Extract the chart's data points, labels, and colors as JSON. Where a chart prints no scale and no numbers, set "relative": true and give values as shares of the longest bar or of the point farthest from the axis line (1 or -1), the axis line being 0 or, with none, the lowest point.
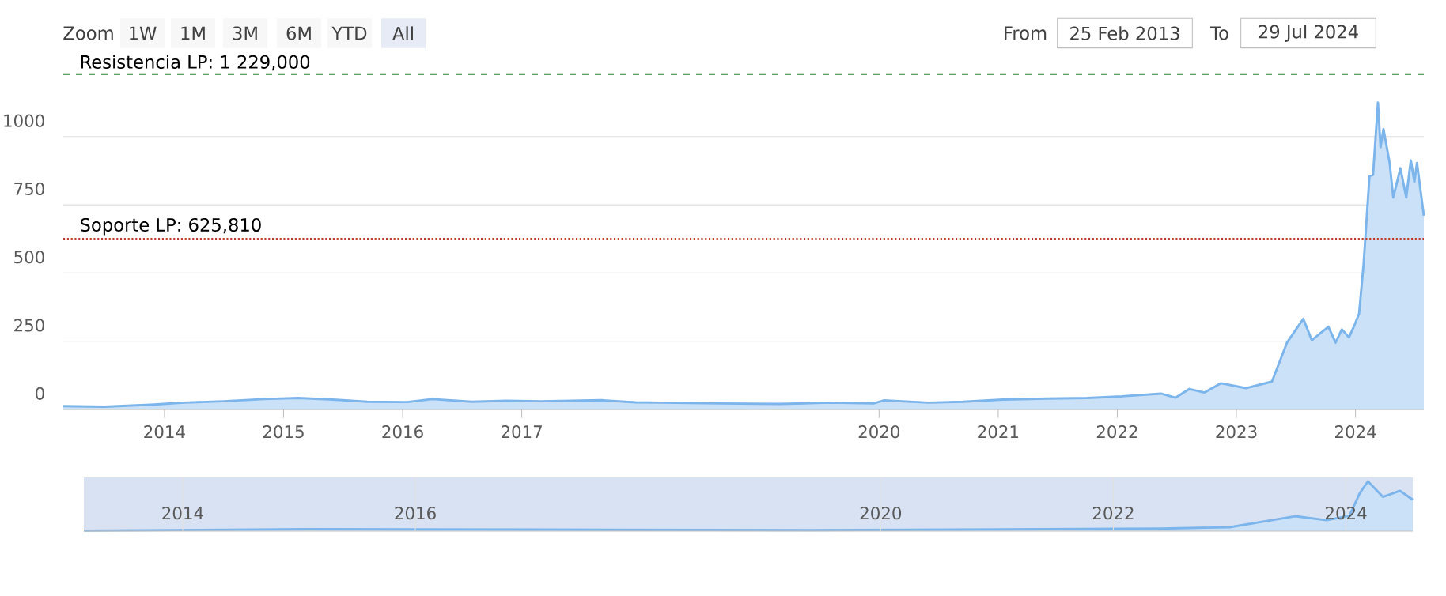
{
  "chart_data": [
    {
      "type": "area",
      "color": "#7cb5ec",
      "annotations": [
        "Zoom",
        "1W",
        "1M",
        "3M",
        "6M",
        "YTD",
        "All",
        "From",
        "25 Feb 2013",
        "To",
        "29 Jul 2024"
      ],
      "x": [
        "2013-02-25",
        "2013-07-01",
        "2013-12-01",
        "2014-03-01",
        "2014-07-01",
        "2014-11-01",
        "2015-02-15",
        "2015-06-01",
        "2015-09-15",
        "2016-01-15",
        "2016-04-01",
        "2016-08-01",
        "2016-11-15",
        "2017-03-01",
        "2017-09-01",
        "2017-12-15",
        "2018-03-01",
        "2018-09-01",
        "2019-03-01",
        "2019-08-01",
        "2019-12-15",
        "2020-01-15",
        "2020-06-01",
        "2020-09-15",
        "2021-01-15",
        "2021-06-01",
        "2021-10-01",
        "2022-01-15",
        "2022-05-15",
        "2022-06-28",
        "2022-08-10",
        "2022-09-25",
        "2022-11-15",
        "2023-01-30",
        "2023-04-20",
        "2023-06-05",
        "2023-07-25",
        "2023-08-20",
        "2023-10-10",
        "2023-11-01",
        "2023-11-20",
        "2023-12-12",
        "2023-12-30",
        "2024-01-12",
        "2024-01-26",
        "2024-02-13",
        "2024-02-24",
        "2024-03-10",
        "2024-03-18",
        "2024-03-27",
        "2024-04-15",
        "2024-04-26",
        "2024-05-18",
        "2024-06-05",
        "2024-06-19",
        "2024-06-30",
        "2024-07-08",
        "2024-07-29"
      ],
      "values": [
        12,
        10,
        18,
        25,
        30,
        38,
        42,
        36,
        28,
        27,
        38,
        28,
        32,
        30,
        34,
        26,
        25,
        22,
        20,
        25,
        22,
        33,
        25,
        28,
        36,
        40,
        42,
        48,
        58,
        43,
        75,
        62,
        96,
        78,
        102,
        245,
        332,
        254,
        303,
        245,
        293,
        264,
        312,
        351,
        535,
        855,
        860,
        1125,
        961,
        1028,
        903,
        777,
        884,
        777,
        913,
        835,
        903,
        710
      ],
      "xlim": [
        "2013-02-25",
        "2024-07-29"
      ],
      "xticks": [
        {
          "value": "2014-01-01",
          "label": "2014"
        },
        {
          "value": "2015-01-01",
          "label": "2015"
        },
        {
          "value": "2016-01-01",
          "label": "2016"
        },
        {
          "value": "2017-01-01",
          "label": "2017"
        },
        {
          "value": "2020-01-01",
          "label": "2020"
        },
        {
          "value": "2021-01-01",
          "label": "2021"
        },
        {
          "value": "2022-01-01",
          "label": "2022"
        },
        {
          "value": "2023-01-01",
          "label": "2023"
        },
        {
          "value": "2024-01-01",
          "label": "2024"
        }
      ],
      "ylim": [
        0,
        1240
      ],
      "yticks": [
        0,
        250,
        500,
        750,
        1000
      ],
      "grid": "y",
      "ref_lines": [
        {
          "axis": "y",
          "value": 1229,
          "label": "Resistencia LP: 1 229,000",
          "color": "#2e7d32",
          "line_style": "dashed"
        },
        {
          "axis": "y",
          "value": 625.81,
          "label": "Soporte LP: 625,810",
          "color": "#c0392b",
          "line_style": "dotted"
        }
      ]
    },
    {
      "type": "area",
      "color": "#7cb5ec",
      "relative": true,
      "x": [
        "2013-02-25",
        "2015-02-01",
        "2017-01-01",
        "2019-06-01",
        "2021-06-01",
        "2022-06-01",
        "2023-01-01",
        "2023-07-25",
        "2023-11-01",
        "2024-01-12",
        "2024-02-13",
        "2024-03-10",
        "2024-04-26",
        "2024-06-19",
        "2024-07-29"
      ],
      "values": [
        0.01,
        0.04,
        0.03,
        0.02,
        0.04,
        0.05,
        0.08,
        0.3,
        0.22,
        0.31,
        0.76,
        1,
        0.69,
        0.81,
        0.63
      ],
      "xlim": [
        "2013-02-25",
        "2024-07-29"
      ],
      "xticks": [
        {
          "value": "2014-01-01",
          "label": "2014"
        },
        {
          "value": "2016-01-01",
          "label": "2016"
        },
        {
          "value": "2020-01-01",
          "label": "2020"
        },
        {
          "value": "2022-01-01",
          "label": "2022"
        },
        {
          "value": "2024-01-01",
          "label": "2024"
        }
      ],
      "tick_labels": "x",
      "grid": "x"
    }
  ]
}
